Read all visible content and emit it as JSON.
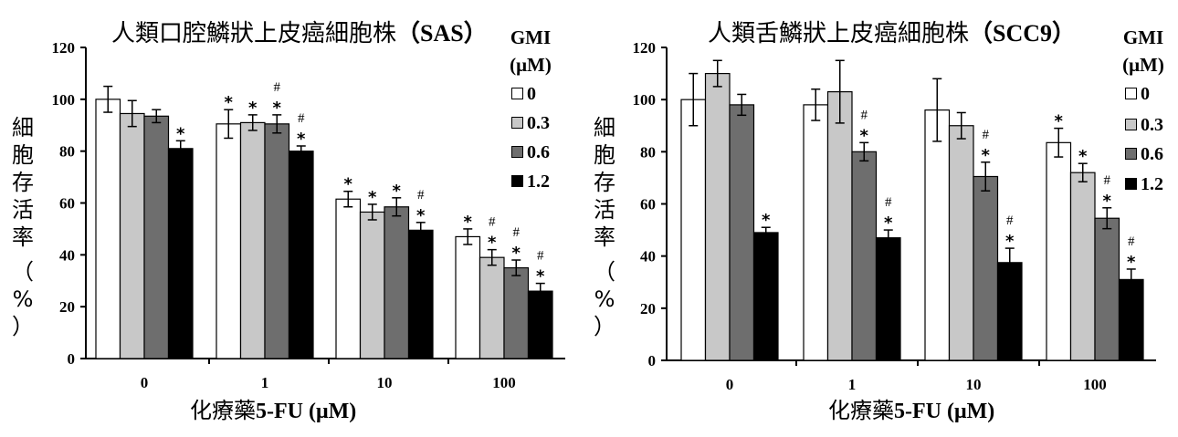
{
  "chart_data": [
    {
      "type": "bar",
      "title_cn": "人類口腔鱗狀上皮癌細胞株",
      "title_cell": "（SAS）",
      "ylabel_chars": [
        "細",
        "胞",
        "存",
        "活",
        "率"
      ],
      "ylabel_unit": [
        "（",
        "%",
        "）"
      ],
      "xlabel_cn": "化療藥",
      "xlabel_en": "5-FU (μM)",
      "ylim": [
        0,
        120
      ],
      "yticks": [
        "0",
        "20",
        "40",
        "60",
        "80",
        "100",
        "120"
      ],
      "categories": [
        "0",
        "1",
        "10",
        "100"
      ],
      "legend_title": [
        "GMI",
        "(μM)"
      ],
      "series": [
        {
          "name": "0",
          "color": "#ffffff",
          "values": [
            100,
            90.5,
            61.5,
            47
          ],
          "errors": [
            5,
            5.5,
            3,
            3
          ],
          "marks": [
            "",
            "*",
            "*",
            "*"
          ]
        },
        {
          "name": "0.3",
          "color": "#c8c8c8",
          "values": [
            94.5,
            91,
            56.5,
            39
          ],
          "errors": [
            5,
            3,
            3,
            3
          ],
          "marks": [
            "",
            "*",
            "*",
            "*#"
          ]
        },
        {
          "name": "0.6",
          "color": "#6e6e6e",
          "values": [
            93.5,
            90.5,
            58.5,
            35
          ],
          "errors": [
            2.5,
            3.5,
            3.5,
            3
          ],
          "marks": [
            "",
            "*#",
            "*",
            "*#"
          ]
        },
        {
          "name": "1.2",
          "color": "#000000",
          "values": [
            81,
            80,
            49.5,
            26
          ],
          "errors": [
            3,
            2,
            3,
            3
          ],
          "marks": [
            "*",
            "*#",
            "*#",
            "*#"
          ]
        }
      ]
    },
    {
      "type": "bar",
      "title_cn": "人類舌鱗狀上皮癌細胞株",
      "title_cell": "（SCC9）",
      "ylabel_chars": [
        "細",
        "胞",
        "存",
        "活",
        "率"
      ],
      "ylabel_unit": [
        "（",
        "%",
        "）"
      ],
      "xlabel_cn": "化療藥",
      "xlabel_en": "5-FU (μM)",
      "ylim": [
        0,
        120
      ],
      "yticks": [
        "0",
        "20",
        "40",
        "60",
        "80",
        "100",
        "120"
      ],
      "categories": [
        "0",
        "1",
        "10",
        "100"
      ],
      "legend_title": [
        "GMI",
        "(μM)"
      ],
      "series": [
        {
          "name": "0",
          "color": "#ffffff",
          "values": [
            100,
            98,
            96,
            83.5
          ],
          "errors": [
            10,
            6,
            12,
            5.5
          ],
          "marks": [
            "",
            "",
            "",
            "*"
          ]
        },
        {
          "name": "0.3",
          "color": "#c8c8c8",
          "values": [
            110,
            103,
            90,
            72
          ],
          "errors": [
            5,
            12,
            5,
            3.5
          ],
          "marks": [
            "",
            "",
            "",
            "*"
          ]
        },
        {
          "name": "0.6",
          "color": "#6e6e6e",
          "values": [
            98,
            80,
            70.5,
            54.5
          ],
          "errors": [
            4,
            3.5,
            5.5,
            4
          ],
          "marks": [
            "",
            "*#",
            "*#",
            "*#"
          ]
        },
        {
          "name": "1.2",
          "color": "#000000",
          "values": [
            49,
            47,
            37.5,
            31
          ],
          "errors": [
            2,
            3,
            5.5,
            4
          ],
          "marks": [
            "*",
            "*#",
            "*#",
            "*#"
          ]
        }
      ]
    }
  ]
}
